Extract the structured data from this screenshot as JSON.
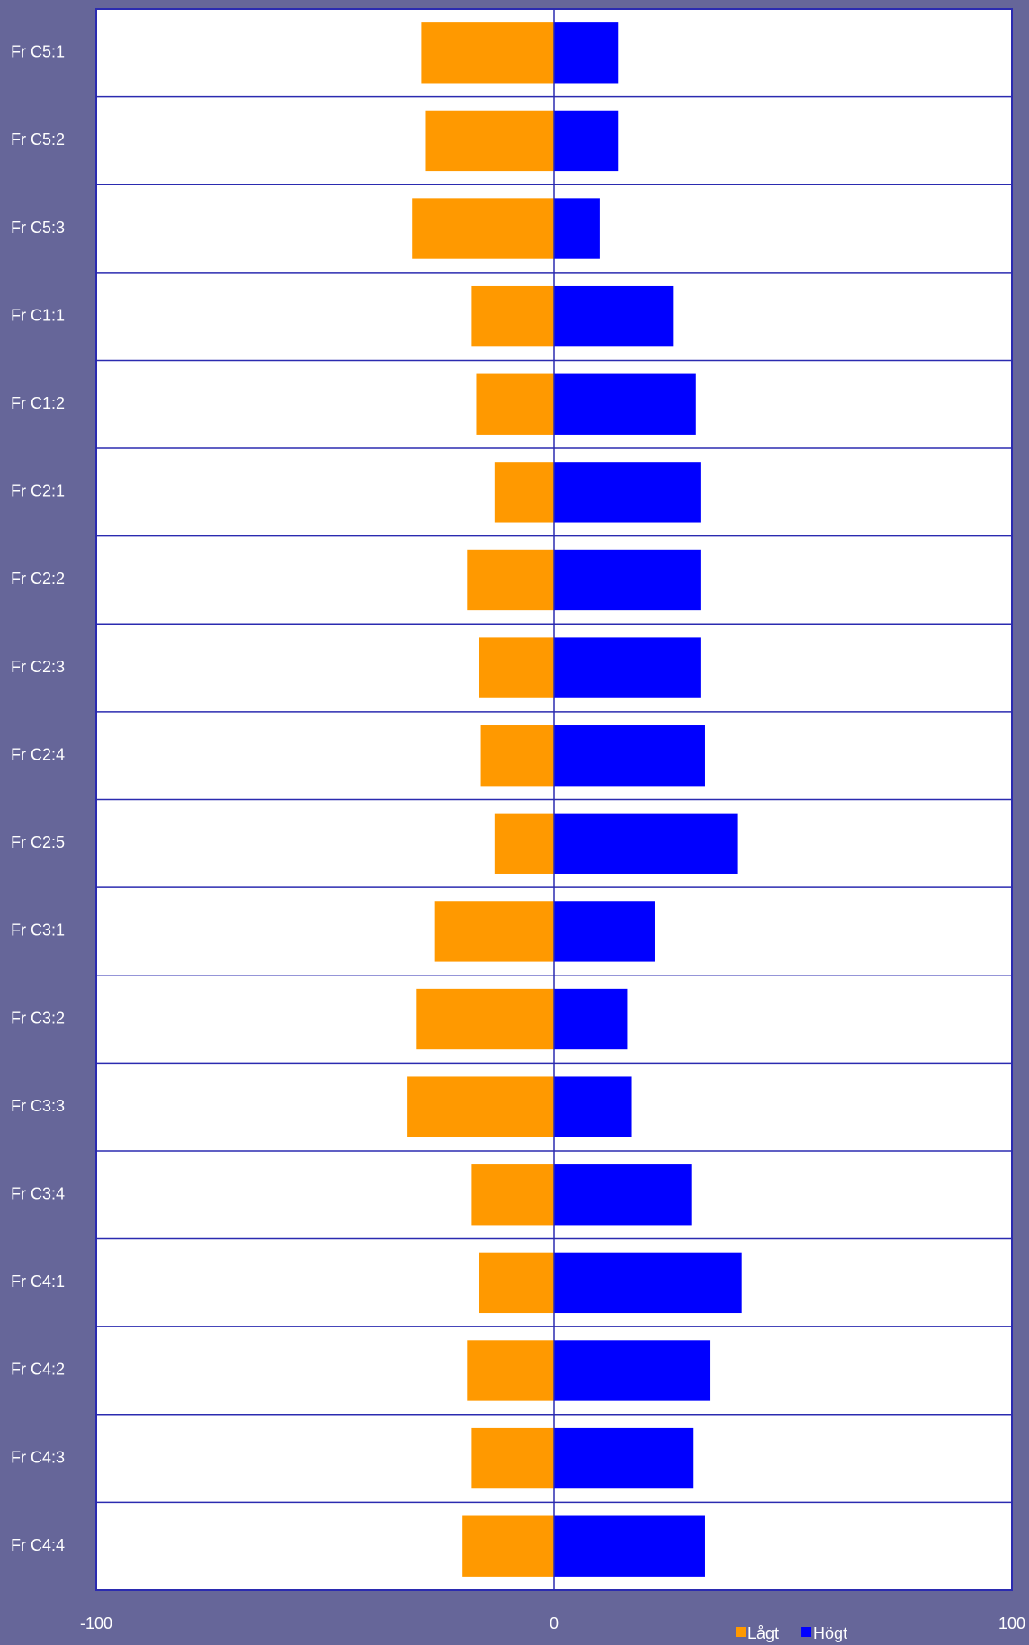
{
  "chart_data": {
    "type": "bar",
    "orientation": "horizontal",
    "categories": [
      "Fr C5:1",
      "Fr C5:2",
      "Fr C5:3",
      "Fr C1:1",
      "Fr C1:2",
      "Fr C2:1",
      "Fr C2:2",
      "Fr C2:3",
      "Fr C2:4",
      "Fr C2:5",
      "Fr C3:1",
      "Fr C3:2",
      "Fr C3:3",
      "Fr C3:4",
      "Fr C4:1",
      "Fr C4:2",
      "Fr C4:3",
      "Fr C4:4"
    ],
    "series": [
      {
        "name": "Lågt",
        "color": "#ff9900",
        "values": [
          -29,
          -28,
          -31,
          -18,
          -17,
          -13,
          -19,
          -16.5,
          -16,
          -13,
          -26,
          -30,
          -32,
          -18,
          -16.5,
          -19,
          -18,
          -20
        ]
      },
      {
        "name": "Högt",
        "color": "#0000ff",
        "values": [
          14,
          14,
          10,
          26,
          31,
          32,
          32,
          32,
          33,
          40,
          22,
          16,
          17,
          30,
          41,
          34,
          30.5,
          33
        ]
      }
    ],
    "xlim": [
      -100,
      100
    ],
    "xticks": [
      -100,
      0,
      100
    ],
    "legend": "bottom"
  }
}
